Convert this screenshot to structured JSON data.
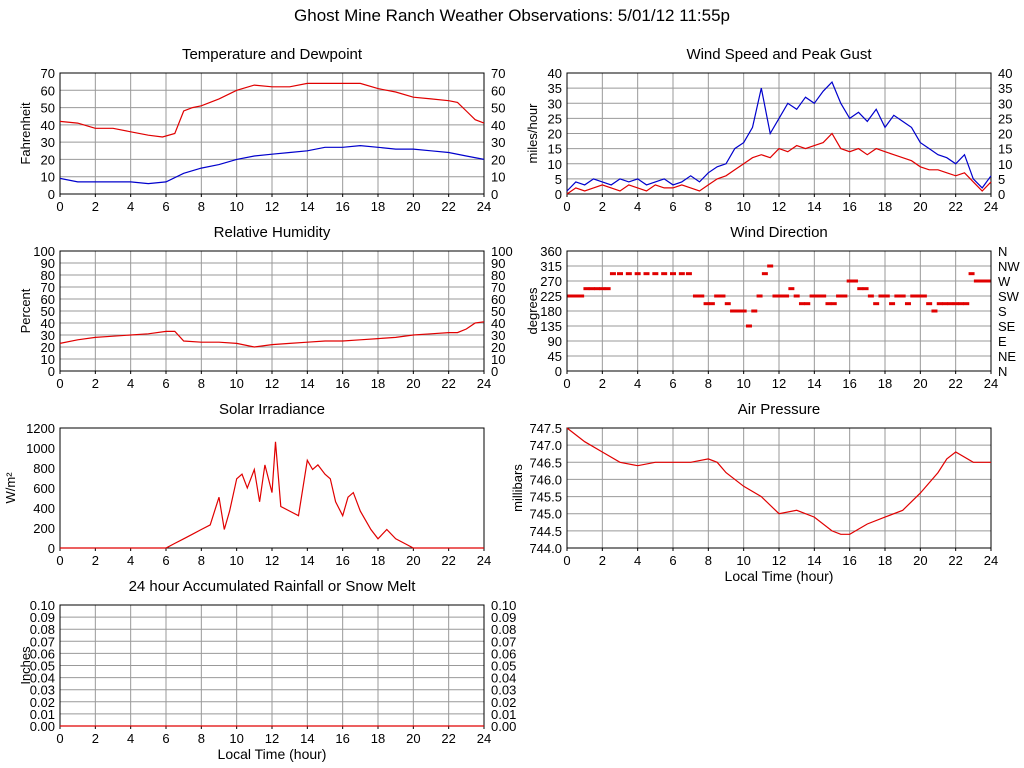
{
  "page": {
    "title": "Ghost Mine Ranch Weather Observations: 5/01/12 11:55p"
  },
  "colors": {
    "red": "#e00000",
    "blue": "#0000cc",
    "grid": "#999999",
    "frame": "#000000"
  },
  "chart_data": [
    {
      "id": "temperature",
      "type": "line",
      "title": "Temperature and Dewpoint",
      "xlabel": "",
      "ylabel": "Fahrenheit",
      "xlim": [
        0,
        24
      ],
      "ylim": [
        0,
        70
      ],
      "xticks": [
        "0",
        "2",
        "4",
        "6",
        "8",
        "10",
        "12",
        "14",
        "16",
        "18",
        "20",
        "22",
        "24"
      ],
      "yticks": [
        "0",
        "10",
        "20",
        "30",
        "40",
        "50",
        "60",
        "70"
      ],
      "right_yticks": [
        "0",
        "10",
        "20",
        "30",
        "40",
        "50",
        "60",
        "70"
      ],
      "grid": true,
      "series": [
        {
          "color": "#e00000",
          "x": [
            0,
            1,
            2,
            3,
            4,
            5,
            5.8,
            6.5,
            7,
            7.5,
            8,
            9,
            10,
            11,
            12,
            13,
            14,
            15,
            16,
            17,
            18,
            19,
            20,
            21,
            22,
            22.5,
            23,
            23.5,
            24
          ],
          "y": [
            42,
            41,
            38,
            38,
            36,
            34,
            33,
            35,
            48,
            50,
            51,
            55,
            60,
            63,
            62,
            62,
            64,
            64,
            64,
            64,
            61,
            59,
            56,
            55,
            54,
            53,
            48,
            43,
            41
          ]
        },
        {
          "color": "#0000cc",
          "x": [
            0,
            1,
            2,
            3,
            4,
            5,
            6,
            7,
            8,
            9,
            10,
            11,
            12,
            13,
            14,
            15,
            16,
            17,
            18,
            19,
            20,
            21,
            22,
            23,
            24
          ],
          "y": [
            9,
            7,
            7,
            7,
            7,
            6,
            7,
            12,
            15,
            17,
            20,
            22,
            23,
            24,
            25,
            27,
            27,
            28,
            27,
            26,
            26,
            25,
            24,
            22,
            20
          ]
        }
      ]
    },
    {
      "id": "wind_speed",
      "type": "line",
      "title": "Wind Speed and Peak Gust",
      "xlabel": "",
      "ylabel": "miles/hour",
      "xlim": [
        0,
        24
      ],
      "ylim": [
        0,
        40
      ],
      "xticks": [
        "0",
        "2",
        "4",
        "6",
        "8",
        "10",
        "12",
        "14",
        "16",
        "18",
        "20",
        "22",
        "24"
      ],
      "yticks": [
        "0",
        "5",
        "10",
        "15",
        "20",
        "25",
        "30",
        "35",
        "40"
      ],
      "right_yticks": [
        "0",
        "5",
        "10",
        "15",
        "20",
        "25",
        "30",
        "35",
        "40"
      ],
      "grid": true,
      "series": [
        {
          "color": "#0000cc",
          "x": [
            0,
            0.5,
            1,
            1.5,
            2,
            2.5,
            3,
            3.5,
            4,
            4.5,
            5,
            5.5,
            6,
            6.5,
            7,
            7.5,
            8,
            8.5,
            9,
            9.5,
            10,
            10.5,
            11,
            11.5,
            12,
            12.5,
            13,
            13.5,
            14,
            14.5,
            15,
            15.5,
            16,
            16.5,
            17,
            17.5,
            18,
            18.5,
            19,
            19.5,
            20,
            20.5,
            21,
            21.5,
            22,
            22.5,
            23,
            23.5,
            24
          ],
          "y": [
            1,
            4,
            3,
            5,
            4,
            3,
            5,
            4,
            5,
            3,
            4,
            5,
            3,
            4,
            6,
            4,
            7,
            9,
            10,
            15,
            17,
            22,
            35,
            20,
            25,
            30,
            28,
            32,
            30,
            34,
            37,
            30,
            25,
            27,
            24,
            28,
            22,
            26,
            24,
            22,
            17,
            15,
            13,
            12,
            10,
            13,
            5,
            2,
            6
          ]
        },
        {
          "color": "#e00000",
          "x": [
            0,
            0.5,
            1,
            1.5,
            2,
            2.5,
            3,
            3.5,
            4,
            4.5,
            5,
            5.5,
            6,
            6.5,
            7,
            7.5,
            8,
            8.5,
            9,
            9.5,
            10,
            10.5,
            11,
            11.5,
            12,
            12.5,
            13,
            13.5,
            14,
            14.5,
            15,
            15.5,
            16,
            16.5,
            17,
            17.5,
            18,
            18.5,
            19,
            19.5,
            20,
            20.5,
            21,
            21.5,
            22,
            22.5,
            23,
            23.5,
            24
          ],
          "y": [
            0,
            2,
            1,
            2,
            3,
            2,
            1,
            3,
            2,
            1,
            3,
            2,
            2,
            3,
            2,
            1,
            3,
            5,
            6,
            8,
            10,
            12,
            13,
            12,
            15,
            14,
            16,
            15,
            16,
            17,
            20,
            15,
            14,
            15,
            13,
            15,
            14,
            13,
            12,
            11,
            9,
            8,
            8,
            7,
            6,
            7,
            4,
            1,
            4
          ]
        }
      ]
    },
    {
      "id": "humidity",
      "type": "line",
      "title": "Relative Humidity",
      "xlabel": "",
      "ylabel": "Percent",
      "xlim": [
        0,
        24
      ],
      "ylim": [
        0,
        100
      ],
      "xticks": [
        "0",
        "2",
        "4",
        "6",
        "8",
        "10",
        "12",
        "14",
        "16",
        "18",
        "20",
        "22",
        "24"
      ],
      "yticks": [
        "0",
        "10",
        "20",
        "30",
        "40",
        "50",
        "60",
        "70",
        "80",
        "90",
        "100"
      ],
      "right_yticks": [
        "0",
        "10",
        "20",
        "30",
        "40",
        "50",
        "60",
        "70",
        "80",
        "90",
        "100"
      ],
      "grid": true,
      "series": [
        {
          "color": "#e00000",
          "x": [
            0,
            1,
            2,
            3,
            4,
            5,
            6,
            6.5,
            7,
            8,
            9,
            10,
            11,
            12,
            13,
            14,
            15,
            16,
            17,
            18,
            19,
            20,
            21,
            22,
            22.5,
            23,
            23.5,
            24
          ],
          "y": [
            23,
            26,
            28,
            29,
            30,
            31,
            33,
            33,
            25,
            24,
            24,
            23,
            20,
            22,
            23,
            24,
            25,
            25,
            26,
            27,
            28,
            30,
            31,
            32,
            32,
            35,
            40,
            41
          ]
        }
      ]
    },
    {
      "id": "wind_direction",
      "type": "scatter",
      "title": "Wind Direction",
      "xlabel": "",
      "ylabel": "degrees",
      "xlim": [
        0,
        24
      ],
      "ylim": [
        0,
        360
      ],
      "xticks": [
        "0",
        "2",
        "4",
        "6",
        "8",
        "10",
        "12",
        "14",
        "16",
        "18",
        "20",
        "22",
        "24"
      ],
      "yticks": [
        "0",
        "45",
        "90",
        "135",
        "180",
        "225",
        "270",
        "315",
        "360"
      ],
      "right_yticks": [
        "N",
        "NE",
        "E",
        "SE",
        "S",
        "SW",
        "W",
        "NW",
        "N"
      ],
      "grid": true,
      "series": [
        {
          "color": "#e00000",
          "x": [
            0.2,
            0.5,
            0.8,
            1.1,
            1.4,
            1.7,
            2,
            2.3,
            2.6,
            3,
            3.5,
            4,
            4.5,
            5,
            5.5,
            6,
            6.5,
            6.9,
            7.3,
            7.6,
            7.9,
            8.2,
            8.5,
            8.8,
            9.1,
            9.4,
            9.7,
            10,
            10.3,
            10.6,
            10.9,
            11.2,
            11.5,
            11.8,
            12.1,
            12.4,
            12.7,
            13,
            13.3,
            13.6,
            13.9,
            14.2,
            14.5,
            14.8,
            15.1,
            15.4,
            15.7,
            16,
            16.3,
            16.6,
            16.9,
            17.2,
            17.5,
            17.8,
            18.1,
            18.4,
            18.7,
            19,
            19.3,
            19.6,
            19.9,
            20.2,
            20.5,
            20.8,
            21.1,
            21.4,
            21.7,
            22,
            22.3,
            22.6,
            22.9,
            23.2,
            23.5,
            23.8
          ],
          "y": [
            225,
            225,
            225,
            247,
            247,
            247,
            247,
            247,
            292,
            292,
            292,
            292,
            292,
            292,
            292,
            292,
            292,
            292,
            225,
            225,
            202,
            202,
            225,
            225,
            202,
            180,
            180,
            180,
            135,
            180,
            225,
            292,
            315,
            225,
            225,
            225,
            247,
            225,
            202,
            202,
            225,
            225,
            225,
            202,
            202,
            225,
            225,
            270,
            270,
            247,
            247,
            225,
            202,
            225,
            225,
            202,
            225,
            225,
            202,
            225,
            225,
            225,
            202,
            180,
            202,
            202,
            202,
            202,
            202,
            202,
            292,
            270,
            270,
            270
          ]
        }
      ]
    },
    {
      "id": "solar",
      "type": "line",
      "title": "Solar Irradiance",
      "xlabel": "",
      "ylabel": "W/m²",
      "xlim": [
        0,
        24
      ],
      "ylim": [
        0,
        1300
      ],
      "xticks": [
        "0",
        "2",
        "4",
        "6",
        "8",
        "10",
        "12",
        "14",
        "16",
        "18",
        "20",
        "22",
        "24"
      ],
      "yticks": [
        "0",
        "200",
        "400",
        "600",
        "800",
        "1000",
        "1200"
      ],
      "right_yticks": [],
      "grid": false,
      "series": [
        {
          "color": "#e00000",
          "x": [
            0,
            6,
            6.5,
            7,
            7.5,
            8,
            8.5,
            9,
            9.3,
            9.6,
            10,
            10.3,
            10.6,
            11,
            11.3,
            11.6,
            12,
            12.2,
            12.5,
            13,
            13.5,
            14,
            14.3,
            14.6,
            15,
            15.3,
            15.6,
            16,
            16.3,
            16.6,
            17,
            17.3,
            17.6,
            18,
            18.5,
            19,
            19.5,
            20,
            24
          ],
          "y": [
            0,
            0,
            50,
            100,
            150,
            200,
            250,
            550,
            200,
            400,
            750,
            800,
            650,
            850,
            500,
            900,
            600,
            1150,
            450,
            400,
            350,
            950,
            850,
            900,
            800,
            750,
            500,
            350,
            550,
            600,
            400,
            300,
            200,
            100,
            200,
            100,
            50,
            0,
            0
          ]
        }
      ]
    },
    {
      "id": "pressure",
      "type": "line",
      "title": "Air Pressure",
      "xlabel": "Local Time (hour)",
      "ylabel": "millibars",
      "xlim": [
        0,
        24
      ],
      "ylim": [
        744.0,
        747.5
      ],
      "xticks": [
        "0",
        "2",
        "4",
        "6",
        "8",
        "10",
        "12",
        "14",
        "16",
        "18",
        "20",
        "22",
        "24"
      ],
      "yticks": [
        "744.0",
        "744.5",
        "745.0",
        "745.5",
        "746.0",
        "746.5",
        "747.0",
        "747.5"
      ],
      "right_yticks": [],
      "grid": true,
      "series": [
        {
          "color": "#e00000",
          "x": [
            0,
            1,
            2,
            3,
            4,
            5,
            6,
            7,
            8,
            8.5,
            9,
            10,
            11,
            12,
            13,
            14,
            15,
            15.5,
            16,
            17,
            18,
            19,
            20,
            21,
            21.5,
            22,
            23,
            24
          ],
          "y": [
            747.5,
            747.1,
            746.8,
            746.5,
            746.4,
            746.5,
            746.5,
            746.5,
            746.6,
            746.5,
            746.2,
            745.8,
            745.5,
            745.0,
            745.1,
            744.9,
            744.5,
            744.4,
            744.4,
            744.7,
            744.9,
            745.1,
            745.6,
            746.2,
            746.6,
            746.8,
            746.5,
            746.5
          ]
        }
      ]
    },
    {
      "id": "rainfall",
      "type": "line",
      "title": "24 hour Accumulated Rainfall or Snow Melt",
      "xlabel": "Local Time (hour)",
      "ylabel": "Inches",
      "xlim": [
        0,
        24
      ],
      "ylim": [
        0,
        0.1
      ],
      "xticks": [
        "0",
        "2",
        "4",
        "6",
        "8",
        "10",
        "12",
        "14",
        "16",
        "18",
        "20",
        "22",
        "24"
      ],
      "yticks": [
        "0.00",
        "0.01",
        "0.02",
        "0.03",
        "0.04",
        "0.05",
        "0.06",
        "0.07",
        "0.08",
        "0.09",
        "0.10"
      ],
      "right_yticks": [
        "0.00",
        "0.01",
        "0.02",
        "0.03",
        "0.04",
        "0.05",
        "0.06",
        "0.07",
        "0.08",
        "0.09",
        "0.10"
      ],
      "grid": true,
      "series": [
        {
          "color": "#e00000",
          "x": [
            0,
            24
          ],
          "y": [
            0,
            0
          ]
        }
      ]
    }
  ]
}
